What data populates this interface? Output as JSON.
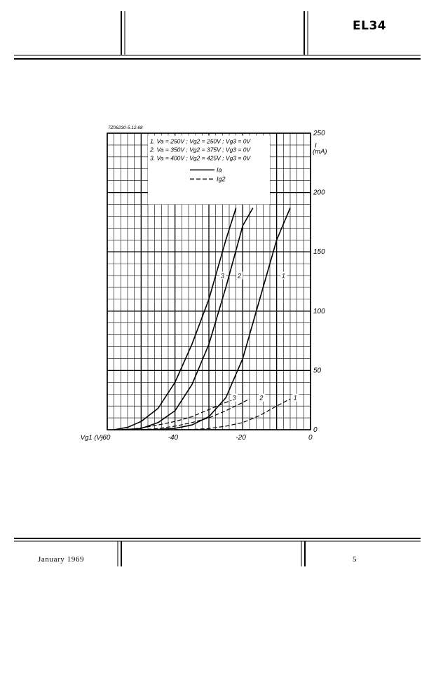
{
  "header": {
    "tube_type": "EL34"
  },
  "footer": {
    "date": "January 1969",
    "page": "5"
  },
  "figure_id": "7Z06230-5.12.68",
  "chart_data": {
    "type": "line",
    "x_axis_label": "Vg1 (V)",
    "y_axis_label": "I (mA)",
    "xlim": [
      -60,
      0
    ],
    "ylim": [
      0,
      250
    ],
    "x_ticks": [
      "-60",
      "-40",
      "-20",
      "0"
    ],
    "y_ticks": [
      "0",
      "50",
      "100",
      "150",
      "200",
      "250"
    ],
    "grid": true,
    "legend_conditions": [
      "1.  Va = 250V ; Vg2 = 250V ; Vg3 = 0V",
      "2.  Va = 350V ; Vg2 = 375V ; Vg3 = 0V",
      "3.  Va = 400V ; Vg2 = 425V ; Vg3 = 0V"
    ],
    "legend_styles": [
      {
        "style": "solid",
        "label": "Ia"
      },
      {
        "style": "dashed",
        "label": "Ig2"
      }
    ],
    "series": [
      {
        "name": "1",
        "quantity": "Ia",
        "style": "solid",
        "x": [
          -50,
          -45,
          -40,
          -35,
          -30,
          -25,
          -20,
          -15,
          -10,
          -6
        ],
        "y": [
          0,
          0.3,
          1.2,
          4,
          11,
          27,
          60,
          110,
          160,
          187
        ]
      },
      {
        "name": "2",
        "quantity": "Ia",
        "style": "solid",
        "x": [
          -56,
          -50,
          -45,
          -40,
          -35,
          -30,
          -25,
          -20,
          -17
        ],
        "y": [
          0,
          1,
          6,
          16,
          38,
          72,
          120,
          172,
          187
        ]
      },
      {
        "name": "3",
        "quantity": "Ia",
        "style": "solid",
        "x": [
          -58,
          -54,
          -50,
          -45,
          -40,
          -35,
          -30,
          -25,
          -22
        ],
        "y": [
          0,
          2,
          7,
          18,
          40,
          72,
          110,
          160,
          187
        ]
      },
      {
        "name": "1",
        "quantity": "Ig2",
        "style": "dashed",
        "x": [
          -40,
          -35,
          -30,
          -25,
          -20,
          -15,
          -10,
          -6
        ],
        "y": [
          0,
          0.2,
          1,
          3,
          6,
          12,
          20,
          26
        ]
      },
      {
        "name": "2",
        "quantity": "Ig2",
        "style": "dashed",
        "x": [
          -50,
          -45,
          -40,
          -35,
          -30,
          -25,
          -20,
          -18
        ],
        "y": [
          0,
          1,
          3,
          6,
          10,
          16,
          23,
          26
        ]
      },
      {
        "name": "3",
        "quantity": "Ig2",
        "style": "dashed",
        "x": [
          -54,
          -50,
          -45,
          -40,
          -35,
          -30,
          -25,
          -22
        ],
        "y": [
          0,
          1.5,
          4,
          7,
          11,
          17,
          23,
          26
        ]
      }
    ],
    "curve_labels": [
      {
        "text": "1",
        "x": -8,
        "y": 128
      },
      {
        "text": "2",
        "x": -21,
        "y": 128
      },
      {
        "text": "3",
        "x": -26,
        "y": 128
      },
      {
        "text": "1",
        "x": -4.5,
        "y": 25
      },
      {
        "text": "2",
        "x": -14.5,
        "y": 25
      },
      {
        "text": "3",
        "x": -22.5,
        "y": 25
      }
    ]
  }
}
